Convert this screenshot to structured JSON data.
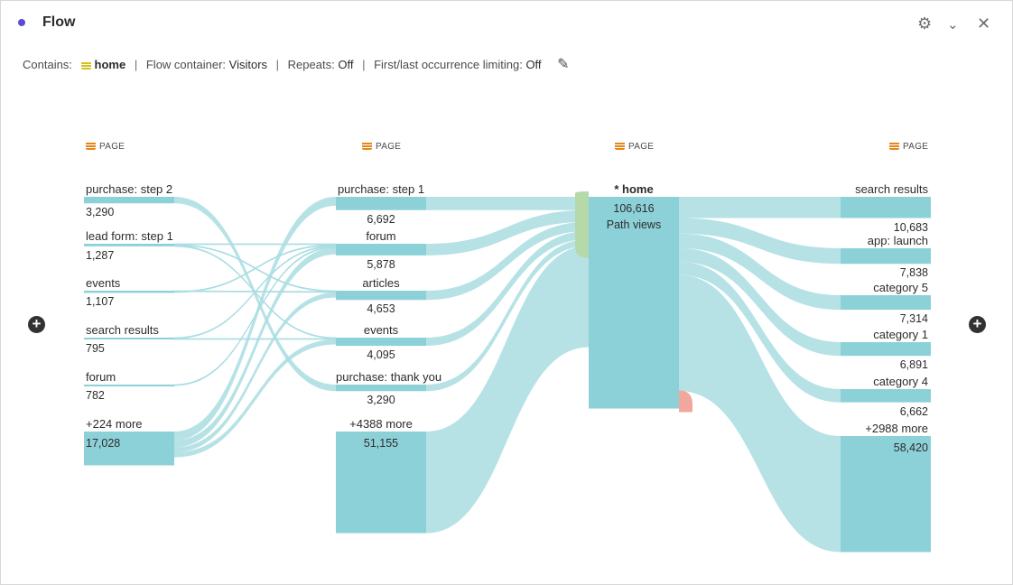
{
  "header": {
    "title": "Flow",
    "settings_icon": "gear-icon",
    "collapse_icon": "chevron-down-icon",
    "close_icon": "close-icon",
    "dot_color": "#5b4bd6"
  },
  "summary": {
    "contains_label": "Contains:",
    "contains_value": "home",
    "container_label": "Flow container:",
    "container_value": "Visitors",
    "repeats_label": "Repeats:",
    "repeats_value": "Off",
    "limiting_label": "First/last occurrence limiting:",
    "limiting_value": "Off",
    "separator": "|",
    "edit_icon": "pencil-icon"
  },
  "colors": {
    "node": "#8dd1d8",
    "link": "#a9dde2",
    "entry": "#b5d9a8",
    "exit": "#f0a79c",
    "dimension": "#e68619"
  },
  "chart_data": {
    "type": "sankey",
    "columns": [
      {
        "header": "PAGE",
        "nodes": [
          {
            "label": "purchase: step 2",
            "value": "3,290",
            "n": 3290
          },
          {
            "label": "lead form: step 1",
            "value": "1,287",
            "n": 1287
          },
          {
            "label": "events",
            "value": "1,107",
            "n": 1107
          },
          {
            "label": "search results",
            "value": "795",
            "n": 795
          },
          {
            "label": "forum",
            "value": "782",
            "n": 782
          },
          {
            "label": "+224 more",
            "value": "17,028",
            "n": 17028
          }
        ]
      },
      {
        "header": "PAGE",
        "nodes": [
          {
            "label": "purchase: step 1",
            "value": "6,692",
            "n": 6692
          },
          {
            "label": "forum",
            "value": "5,878",
            "n": 5878
          },
          {
            "label": "articles",
            "value": "4,653",
            "n": 4653
          },
          {
            "label": "events",
            "value": "4,095",
            "n": 4095
          },
          {
            "label": "purchase: thank you",
            "value": "3,290",
            "n": 3290
          },
          {
            "label": "+4388 more",
            "value": "51,155",
            "n": 51155
          }
        ]
      },
      {
        "header": "PAGE",
        "nodes": [
          {
            "label": "* home",
            "value": "106,616",
            "sub": "Path views",
            "n": 106616
          }
        ]
      },
      {
        "header": "PAGE",
        "nodes": [
          {
            "label": "search results",
            "value": "10,683",
            "n": 10683
          },
          {
            "label": "app: launch",
            "value": "7,838",
            "n": 7838
          },
          {
            "label": "category 5",
            "value": "7,314",
            "n": 7314
          },
          {
            "label": "category 1",
            "value": "6,891",
            "n": 6891
          },
          {
            "label": "category 4",
            "value": "6,662",
            "n": 6662
          },
          {
            "label": "+2988 more",
            "value": "58,420",
            "n": 58420
          }
        ]
      }
    ],
    "links": [
      {
        "from": [
          0,
          0
        ],
        "to": [
          1,
          4
        ],
        "n": 3290
      },
      {
        "from": [
          0,
          1
        ],
        "to": [
          1,
          1
        ],
        "n": 300
      },
      {
        "from": [
          0,
          1
        ],
        "to": [
          1,
          2
        ],
        "n": 300
      },
      {
        "from": [
          0,
          1
        ],
        "to": [
          1,
          3
        ],
        "n": 250
      },
      {
        "from": [
          0,
          2
        ],
        "to": [
          1,
          2
        ],
        "n": 400
      },
      {
        "from": [
          0,
          2
        ],
        "to": [
          1,
          1
        ],
        "n": 200
      },
      {
        "from": [
          0,
          3
        ],
        "to": [
          1,
          1
        ],
        "n": 200
      },
      {
        "from": [
          0,
          3
        ],
        "to": [
          1,
          3
        ],
        "n": 200
      },
      {
        "from": [
          0,
          4
        ],
        "to": [
          1,
          1
        ],
        "n": 500
      },
      {
        "from": [
          0,
          5
        ],
        "to": [
          1,
          0
        ],
        "n": 4500
      },
      {
        "from": [
          0,
          5
        ],
        "to": [
          1,
          1
        ],
        "n": 3500
      },
      {
        "from": [
          0,
          5
        ],
        "to": [
          1,
          2
        ],
        "n": 2500
      },
      {
        "from": [
          0,
          5
        ],
        "to": [
          1,
          3
        ],
        "n": 2500
      },
      {
        "from": [
          1,
          0
        ],
        "to": [
          2,
          0
        ],
        "n": 6692
      },
      {
        "from": [
          1,
          1
        ],
        "to": [
          2,
          0
        ],
        "n": 5878
      },
      {
        "from": [
          1,
          2
        ],
        "to": [
          2,
          0
        ],
        "n": 4653
      },
      {
        "from": [
          1,
          3
        ],
        "to": [
          2,
          0
        ],
        "n": 4095
      },
      {
        "from": [
          1,
          4
        ],
        "to": [
          2,
          0
        ],
        "n": 3290
      },
      {
        "from": [
          1,
          5
        ],
        "to": [
          2,
          0
        ],
        "n": 51155
      },
      {
        "from": [
          2,
          0
        ],
        "to": [
          3,
          0
        ],
        "n": 10683
      },
      {
        "from": [
          2,
          0
        ],
        "to": [
          3,
          1
        ],
        "n": 7838
      },
      {
        "from": [
          2,
          0
        ],
        "to": [
          3,
          2
        ],
        "n": 7314
      },
      {
        "from": [
          2,
          0
        ],
        "to": [
          3,
          3
        ],
        "n": 6891
      },
      {
        "from": [
          2,
          0
        ],
        "to": [
          3,
          4
        ],
        "n": 6662
      },
      {
        "from": [
          2,
          0
        ],
        "to": [
          3,
          5
        ],
        "n": 58420
      }
    ]
  },
  "controls": {
    "add_left_icon": "plus-circle-icon",
    "add_right_icon": "plus-circle-icon"
  }
}
